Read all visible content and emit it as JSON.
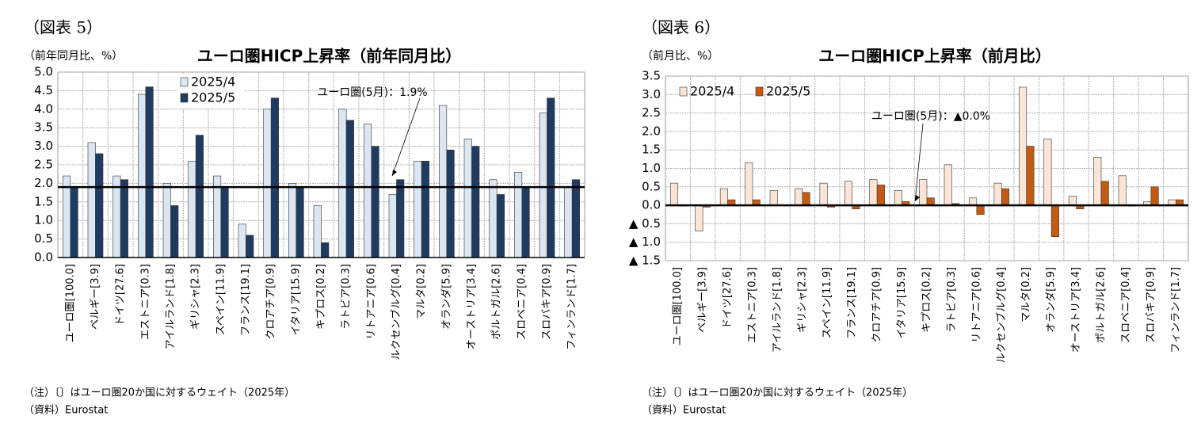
{
  "chart_data": [
    {
      "type": "bar",
      "figure_label": "（図表 5）",
      "unit_label": "（前年同月比、%）",
      "title": "ユーロ圏HICP上昇率（前年同月比）",
      "categories": [
        "ユーロ圏[100.0]",
        "ベルギー[3.9]",
        "ドイツ[27.6]",
        "エストニア[0.3]",
        "アイルランド[1.8]",
        "ギリシャ[2.3]",
        "スペイン[11.9]",
        "フランス[19.1]",
        "クロアチア[0.9]",
        "イタリア[15.9]",
        "キプロス[0.2]",
        "ラトビア[0.3]",
        "リトアニア[0.6]",
        "ルクセンブルグ[0.4]",
        "マルタ[0.2]",
        "オランダ[5.9]",
        "オーストリア[3.4]",
        "ポルトガル[2.6]",
        "スロベニア[0.4]",
        "スロバキア[0.9]",
        "フィンランド[1.7]"
      ],
      "series": [
        {
          "name": "2025/4",
          "color": "#dce6f2",
          "values": [
            2.2,
            3.1,
            2.2,
            4.4,
            2.0,
            2.6,
            2.2,
            0.9,
            4.0,
            2.0,
            1.4,
            4.0,
            3.6,
            1.7,
            2.6,
            4.1,
            3.2,
            2.1,
            2.3,
            3.9,
            1.9
          ]
        },
        {
          "name": "2025/5",
          "color": "#1f3b5f",
          "values": [
            1.9,
            2.8,
            2.1,
            4.6,
            1.4,
            3.3,
            1.9,
            0.6,
            4.3,
            1.9,
            0.4,
            3.7,
            3.0,
            2.1,
            2.6,
            2.9,
            3.0,
            1.7,
            1.9,
            4.3,
            2.1
          ]
        }
      ],
      "ylim": [
        0,
        5
      ],
      "yticks": [
        {
          "value": 0,
          "label": "0.0"
        },
        0.5,
        {
          "value": 1,
          "label": "1.0"
        },
        1.5,
        {
          "value": 2,
          "label": "2.0"
        },
        2.5,
        {
          "value": 3,
          "label": "3.0"
        },
        3.5,
        {
          "value": 4,
          "label": "4.0"
        },
        4.5,
        {
          "value": 5,
          "label": "5.0"
        }
      ],
      "grid": true,
      "legend": "upper-left",
      "reference_line": 1.9,
      "annotation": "ユーロ圏(5月)：1.9%",
      "notes": [
        "（注）〔〕はユーロ圏20か国に対するウェイト（2025年）",
        "（資料）Eurostat"
      ]
    },
    {
      "type": "bar",
      "figure_label": "（図表 6）",
      "unit_label": "（前月比、%）",
      "title": "ユーロ圏HICP上昇率（前月比）",
      "categories": [
        "ユーロ圏[100.0]",
        "ベルギー[3.9]",
        "ドイツ[27.6]",
        "エストニア[0.3]",
        "アイルランド[1.8]",
        "ギリシャ[2.3]",
        "スペイン[11.9]",
        "フランス[19.1]",
        "クロアチア[0.9]",
        "イタリア[15.9]",
        "キプロス[0.2]",
        "ラトビア[0.3]",
        "リトアニア[0.6]",
        "ルクセンブルグ[0.4]",
        "マルタ[0.2]",
        "オランダ[5.9]",
        "オーストリア[3.4]",
        "ポルトガル[2.6]",
        "スロベニア[0.4]",
        "スロバキア[0.9]",
        "フィンランド[1.7]"
      ],
      "series": [
        {
          "name": "2025/4",
          "color": "#fbe5d6",
          "values": [
            0.6,
            -0.7,
            0.45,
            1.15,
            0.4,
            0.45,
            0.6,
            0.65,
            0.7,
            0.4,
            0.7,
            1.1,
            0.2,
            0.6,
            3.2,
            1.8,
            0.25,
            1.3,
            0.8,
            0.1,
            0.15
          ]
        },
        {
          "name": "2025/5",
          "color": "#c55a11",
          "values": [
            -0.02,
            -0.05,
            0.15,
            0.15,
            0.0,
            0.35,
            -0.05,
            -0.1,
            0.55,
            0.1,
            0.2,
            0.05,
            -0.25,
            0.45,
            1.6,
            -0.85,
            -0.1,
            0.65,
            -0.02,
            0.5,
            0.15
          ]
        }
      ],
      "ylim": [
        -1.5,
        3.5
      ],
      "yticks": [
        {
          "value": -1.5,
          "label": "▲ 1.5"
        },
        {
          "value": -1,
          "label": "▲ 1.0"
        },
        {
          "value": -0.5,
          "label": "▲ 0.5"
        },
        {
          "value": 0,
          "label": "0.0"
        },
        0.5,
        {
          "value": 1,
          "label": "1.0"
        },
        1.5,
        {
          "value": 2,
          "label": "2.0"
        },
        2.5,
        {
          "value": 3,
          "label": "3.0"
        },
        3.5
      ],
      "grid": true,
      "legend": "top-left",
      "reference_line": 0,
      "annotation": "ユーロ圏(5月)：▲0.0%",
      "notes": [
        "（注）〔〕はユーロ圏20か国に対するウェイト（2025年）",
        "（資料）Eurostat"
      ]
    }
  ]
}
